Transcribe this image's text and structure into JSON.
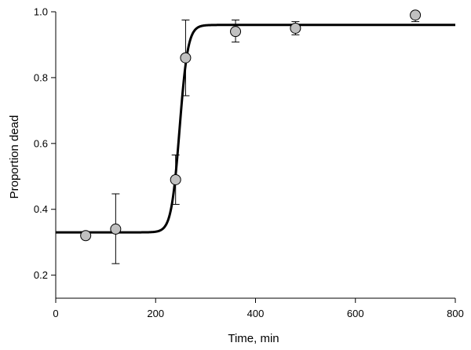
{
  "chart_data": {
    "type": "scatter",
    "xlabel": "Time, min",
    "ylabel": "Proportion dead",
    "xlim": [
      0,
      800
    ],
    "ylim": [
      0.13,
      1.0
    ],
    "xticks": [
      0,
      200,
      400,
      600,
      800
    ],
    "yticks": [
      0.2,
      0.4,
      0.6,
      0.8,
      1.0
    ],
    "xtick_labels": [
      "0",
      "200",
      "400",
      "600",
      "800"
    ],
    "ytick_labels": [
      "0.2",
      "0.4",
      "0.6",
      "0.8",
      "1.0"
    ],
    "grid": false,
    "points": [
      {
        "x": 60,
        "y": 0.32,
        "err_lo": null,
        "err_hi": null
      },
      {
        "x": 120,
        "y": 0.34,
        "err_lo": 0.235,
        "err_hi": 0.447
      },
      {
        "x": 240,
        "y": 0.49,
        "err_lo": 0.415,
        "err_hi": 0.565
      },
      {
        "x": 260,
        "y": 0.86,
        "err_lo": 0.745,
        "err_hi": 0.975
      },
      {
        "x": 360,
        "y": 0.94,
        "err_lo": 0.908,
        "err_hi": 0.975
      },
      {
        "x": 480,
        "y": 0.95,
        "err_lo": 0.93,
        "err_hi": 0.97
      },
      {
        "x": 720,
        "y": 0.99,
        "err_lo": 0.97,
        "err_hi": null
      }
    ],
    "fit_curve": {
      "type": "logistic",
      "lower": 0.33,
      "upper": 0.96,
      "midpoint": 248,
      "slope": 0.12,
      "x_range": [
        0,
        800
      ]
    },
    "colors": {
      "marker_fill": "#c0c0c0",
      "marker_edge": "#000000",
      "curve": "#000000",
      "axis": "#000000"
    }
  }
}
